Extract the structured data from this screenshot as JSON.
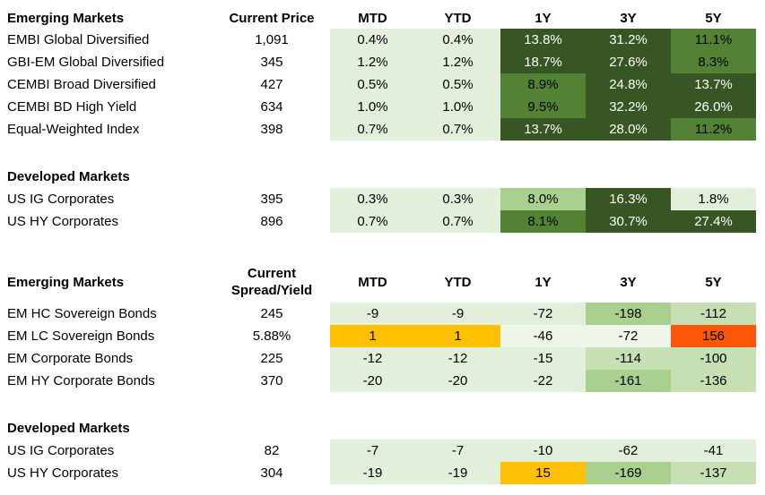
{
  "palette": {
    "light": "#e2efda",
    "pale": "#eef5e9",
    "soft": "#c6e0b4",
    "medium_light": "#a9d08e",
    "medium": "#548235",
    "dark": "#375623",
    "gold": "#ffc000",
    "orange": "#fc5708",
    "white_text": "#ffffff",
    "black_text": "#000000"
  },
  "chart_data": [
    {
      "type": "heatmap",
      "name": "total-returns-table",
      "value_column_header": [
        "Current Price"
      ],
      "period_columns": [
        "MTD",
        "YTD",
        "1Y",
        "3Y",
        "5Y"
      ],
      "sections": [
        {
          "title": "Emerging Markets",
          "rows": [
            {
              "label": "EMBI Global Diversified",
              "value": "1,091",
              "cells": [
                {
                  "v": "0.4%",
                  "bg": "light"
                },
                {
                  "v": "0.4%",
                  "bg": "light"
                },
                {
                  "v": "13.8%",
                  "bg": "dark",
                  "fg": "white"
                },
                {
                  "v": "31.2%",
                  "bg": "dark",
                  "fg": "white"
                },
                {
                  "v": "11.1%",
                  "bg": "medium"
                }
              ]
            },
            {
              "label": "GBI-EM Global Diversified",
              "value": "345",
              "cells": [
                {
                  "v": "1.2%",
                  "bg": "light"
                },
                {
                  "v": "1.2%",
                  "bg": "light"
                },
                {
                  "v": "18.7%",
                  "bg": "dark",
                  "fg": "white"
                },
                {
                  "v": "27.6%",
                  "bg": "dark",
                  "fg": "white"
                },
                {
                  "v": "8.3%",
                  "bg": "medium"
                }
              ]
            },
            {
              "label": "CEMBI Broad Diversified",
              "value": "427",
              "cells": [
                {
                  "v": "0.5%",
                  "bg": "light"
                },
                {
                  "v": "0.5%",
                  "bg": "light"
                },
                {
                  "v": "8.9%",
                  "bg": "medium"
                },
                {
                  "v": "24.8%",
                  "bg": "dark",
                  "fg": "white"
                },
                {
                  "v": "13.7%",
                  "bg": "dark",
                  "fg": "white"
                }
              ]
            },
            {
              "label": "CEMBI BD High Yield",
              "value": "634",
              "cells": [
                {
                  "v": "1.0%",
                  "bg": "light"
                },
                {
                  "v": "1.0%",
                  "bg": "light"
                },
                {
                  "v": "9.5%",
                  "bg": "medium"
                },
                {
                  "v": "32.2%",
                  "bg": "dark",
                  "fg": "white"
                },
                {
                  "v": "26.0%",
                  "bg": "dark",
                  "fg": "white"
                }
              ]
            },
            {
              "label": "Equal-Weighted Index",
              "value": "398",
              "cells": [
                {
                  "v": "0.7%",
                  "bg": "light"
                },
                {
                  "v": "0.7%",
                  "bg": "light"
                },
                {
                  "v": "13.7%",
                  "bg": "dark",
                  "fg": "white"
                },
                {
                  "v": "28.0%",
                  "bg": "dark",
                  "fg": "white"
                },
                {
                  "v": "11.2%",
                  "bg": "medium"
                }
              ]
            }
          ]
        },
        {
          "title": "Developed Markets",
          "rows": [
            {
              "label": "US IG Corporates",
              "value": "395",
              "cells": [
                {
                  "v": "0.3%",
                  "bg": "light"
                },
                {
                  "v": "0.3%",
                  "bg": "light"
                },
                {
                  "v": "8.0%",
                  "bg": "medium_light"
                },
                {
                  "v": "16.3%",
                  "bg": "dark",
                  "fg": "white"
                },
                {
                  "v": "1.8%",
                  "bg": "light"
                }
              ]
            },
            {
              "label": "US HY Corporates",
              "value": "896",
              "cells": [
                {
                  "v": "0.7%",
                  "bg": "light"
                },
                {
                  "v": "0.7%",
                  "bg": "light"
                },
                {
                  "v": "8.1%",
                  "bg": "medium"
                },
                {
                  "v": "30.7%",
                  "bg": "dark",
                  "fg": "white"
                },
                {
                  "v": "27.4%",
                  "bg": "dark",
                  "fg": "white"
                }
              ]
            }
          ]
        }
      ]
    },
    {
      "type": "heatmap",
      "name": "spread-yield-change-table",
      "value_column_header": [
        "Current",
        "Spread/Yield"
      ],
      "period_columns": [
        "MTD",
        "YTD",
        "1Y",
        "3Y",
        "5Y"
      ],
      "sections": [
        {
          "title": "Emerging Markets",
          "rows": [
            {
              "label": "EM HC Sovereign Bonds",
              "value": "245",
              "cells": [
                {
                  "v": "-9",
                  "bg": "light"
                },
                {
                  "v": "-9",
                  "bg": "light"
                },
                {
                  "v": "-72",
                  "bg": "light"
                },
                {
                  "v": "-198",
                  "bg": "medium_light"
                },
                {
                  "v": "-112",
                  "bg": "soft"
                }
              ]
            },
            {
              "label": "EM LC Sovereign Bonds",
              "value": "5.88%",
              "cells": [
                {
                  "v": "1",
                  "bg": "gold"
                },
                {
                  "v": "1",
                  "bg": "gold"
                },
                {
                  "v": "-46",
                  "bg": "pale"
                },
                {
                  "v": "-72",
                  "bg": "pale"
                },
                {
                  "v": "156",
                  "bg": "orange"
                }
              ]
            },
            {
              "label": "EM Corporate Bonds",
              "value": "225",
              "cells": [
                {
                  "v": "-12",
                  "bg": "light"
                },
                {
                  "v": "-12",
                  "bg": "light"
                },
                {
                  "v": "-15",
                  "bg": "light"
                },
                {
                  "v": "-114",
                  "bg": "soft"
                },
                {
                  "v": "-100",
                  "bg": "soft"
                }
              ]
            },
            {
              "label": "EM HY Corporate Bonds",
              "value": "370",
              "cells": [
                {
                  "v": "-20",
                  "bg": "light"
                },
                {
                  "v": "-20",
                  "bg": "light"
                },
                {
                  "v": "-22",
                  "bg": "light"
                },
                {
                  "v": "-161",
                  "bg": "medium_light"
                },
                {
                  "v": "-136",
                  "bg": "soft"
                }
              ]
            }
          ]
        },
        {
          "title": "Developed Markets",
          "rows": [
            {
              "label": "US IG Corporates",
              "value": "82",
              "cells": [
                {
                  "v": "-7",
                  "bg": "light"
                },
                {
                  "v": "-7",
                  "bg": "light"
                },
                {
                  "v": "-10",
                  "bg": "light"
                },
                {
                  "v": "-62",
                  "bg": "light"
                },
                {
                  "v": "-41",
                  "bg": "light"
                }
              ]
            },
            {
              "label": "US HY Corporates",
              "value": "304",
              "cells": [
                {
                  "v": "-19",
                  "bg": "light"
                },
                {
                  "v": "-19",
                  "bg": "light"
                },
                {
                  "v": "15",
                  "bg": "gold"
                },
                {
                  "v": "-169",
                  "bg": "medium_light"
                },
                {
                  "v": "-137",
                  "bg": "soft"
                }
              ]
            }
          ]
        }
      ]
    }
  ]
}
